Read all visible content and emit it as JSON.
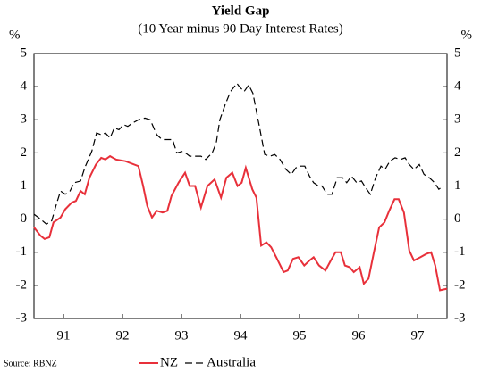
{
  "chart_data": {
    "type": "line",
    "title": "Yield Gap",
    "subtitle": "(10 Year minus 90 Day Interest Rates)",
    "ylabel": "%",
    "y2label": "%",
    "source": "Source: RBNZ",
    "xlim": [
      91,
      98
    ],
    "xticks": [
      {
        "value": 91.5,
        "label": "91"
      },
      {
        "value": 92.5,
        "label": "92"
      },
      {
        "value": 93.5,
        "label": "93"
      },
      {
        "value": 94.5,
        "label": "94"
      },
      {
        "value": 95.5,
        "label": "95"
      },
      {
        "value": 96.5,
        "label": "96"
      },
      {
        "value": 97.5,
        "label": "97"
      }
    ],
    "ylim": [
      -3,
      5
    ],
    "yticks": [
      -3,
      -2,
      -1,
      0,
      1,
      2,
      3,
      4,
      5
    ],
    "y2lim": [
      -3,
      5
    ],
    "y2ticks": [
      -3,
      -2,
      -1,
      0,
      1,
      2,
      3,
      4,
      5
    ],
    "legend": "bottom",
    "series": [
      {
        "name": "NZ",
        "color": "#e8303a",
        "dash": "solid",
        "x": [
          91.0,
          91.11,
          91.18,
          91.26,
          91.33,
          91.45,
          91.53,
          91.64,
          91.71,
          91.79,
          91.86,
          91.94,
          92.05,
          92.14,
          92.21,
          92.29,
          92.39,
          92.55,
          92.77,
          92.85,
          92.92,
          93.0,
          93.08,
          93.18,
          93.26,
          93.33,
          93.45,
          93.56,
          93.64,
          93.73,
          93.83,
          93.94,
          94.06,
          94.17,
          94.26,
          94.36,
          94.45,
          94.52,
          94.59,
          94.7,
          94.77,
          94.85,
          94.94,
          95.02,
          95.12,
          95.23,
          95.3,
          95.39,
          95.48,
          95.58,
          95.67,
          95.74,
          95.83,
          95.94,
          96.03,
          96.11,
          96.2,
          96.27,
          96.35,
          96.42,
          96.52,
          96.59,
          96.67,
          96.76,
          96.85,
          96.94,
          97.02,
          97.11,
          97.18,
          97.27,
          97.36,
          97.44,
          97.55,
          97.65,
          97.73,
          97.8,
          97.88,
          98.0
        ],
        "values": [
          -0.25,
          -0.5,
          -0.6,
          -0.55,
          -0.1,
          0.05,
          0.3,
          0.5,
          0.55,
          0.85,
          0.75,
          1.25,
          1.65,
          1.85,
          1.8,
          1.9,
          1.8,
          1.75,
          1.6,
          1.0,
          0.4,
          0.05,
          0.25,
          0.2,
          0.25,
          0.7,
          1.1,
          1.4,
          1.0,
          1.0,
          0.35,
          1.0,
          1.2,
          0.65,
          1.25,
          1.4,
          1.0,
          1.1,
          1.55,
          0.9,
          0.65,
          -0.8,
          -0.7,
          -0.85,
          -1.2,
          -1.6,
          -1.55,
          -1.2,
          -1.15,
          -1.4,
          -1.25,
          -1.15,
          -1.4,
          -1.55,
          -1.25,
          -1.0,
          -1.0,
          -1.4,
          -1.45,
          -1.6,
          -1.45,
          -1.95,
          -1.8,
          -1.0,
          -0.25,
          -0.1,
          0.25,
          0.6,
          0.6,
          0.2,
          -0.95,
          -1.25,
          -1.15,
          -1.05,
          -1.0,
          -1.4,
          -2.15,
          -2.1
        ]
      },
      {
        "name": "Australia",
        "color": "#000000",
        "dash": "dashed",
        "x": [
          91.0,
          91.11,
          91.21,
          91.3,
          91.38,
          91.45,
          91.53,
          91.61,
          91.68,
          91.79,
          91.86,
          91.98,
          92.06,
          92.14,
          92.21,
          92.29,
          92.36,
          92.44,
          92.52,
          92.59,
          92.67,
          92.77,
          92.88,
          92.97,
          93.08,
          93.17,
          93.26,
          93.35,
          93.42,
          93.53,
          93.64,
          93.73,
          93.83,
          93.91,
          94.02,
          94.09,
          94.15,
          94.24,
          94.33,
          94.44,
          94.48,
          94.56,
          94.64,
          94.71,
          94.82,
          94.91,
          95.0,
          95.08,
          95.17,
          95.27,
          95.36,
          95.44,
          95.52,
          95.59,
          95.67,
          95.74,
          95.82,
          95.88,
          95.97,
          96.05,
          96.14,
          96.23,
          96.3,
          96.38,
          96.47,
          96.55,
          96.62,
          96.7,
          96.79,
          96.88,
          96.95,
          97.03,
          97.12,
          97.21,
          97.29,
          97.36,
          97.44,
          97.53,
          97.61,
          97.7,
          97.79,
          97.86,
          97.94
        ],
        "values": [
          0.15,
          0,
          -0.15,
          -0.05,
          0.45,
          0.85,
          0.75,
          0.85,
          1.1,
          1.15,
          1.55,
          2.05,
          2.6,
          2.55,
          2.6,
          2.45,
          2.75,
          2.7,
          2.85,
          2.8,
          2.9,
          3.0,
          3.05,
          3.0,
          2.55,
          2.4,
          2.4,
          2.4,
          2.0,
          2.05,
          1.9,
          1.9,
          1.9,
          1.8,
          2.0,
          2.3,
          3.0,
          3.45,
          3.85,
          4.1,
          4.0,
          3.85,
          4.05,
          3.8,
          2.8,
          1.95,
          1.9,
          1.95,
          1.8,
          1.5,
          1.35,
          1.55,
          1.6,
          1.6,
          1.3,
          1.1,
          1.0,
          1.0,
          0.75,
          0.75,
          1.25,
          1.25,
          1.1,
          1.3,
          1.1,
          1.15,
          0.95,
          0.75,
          1.25,
          1.6,
          1.5,
          1.75,
          1.85,
          1.8,
          1.85,
          1.65,
          1.5,
          1.65,
          1.35,
          1.25,
          1.1,
          0.9,
          1.0
        ]
      }
    ]
  }
}
